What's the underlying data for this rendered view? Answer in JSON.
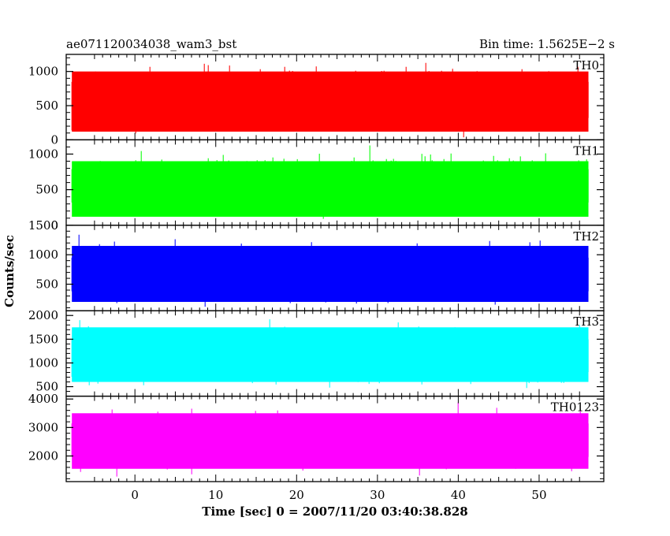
{
  "header": {
    "left": "ae071120034038_wam3_bst",
    "right": "Bin time: 1.5625E−2 s"
  },
  "chart_data": {
    "type": "line",
    "xlabel": "Time [sec] 0 = 2007/11/20 03:40:38.828",
    "ylabel": "Counts/sec",
    "xlim": [
      -8.5,
      58.0
    ],
    "data_x_range": [
      -7.8,
      56.1
    ],
    "x_ticks": [
      0,
      10,
      20,
      30,
      40,
      50
    ],
    "bin_time_s": 0.015625,
    "panels": [
      {
        "name": "TH0",
        "color": "#ff0000",
        "ylim": [
          0,
          1250
        ],
        "y_ticks": [
          0,
          500,
          1000
        ],
        "y_tick_labels": [
          "0",
          "500",
          "1000"
        ],
        "mean": 620,
        "low_typical": 120,
        "high_typical": 1000,
        "max": 1250
      },
      {
        "name": "TH1",
        "color": "#00ff00",
        "ylim": [
          0,
          1200
        ],
        "y_ticks": [
          0,
          500,
          1000
        ],
        "y_tick_labels": [
          "0",
          "500",
          "1000"
        ],
        "mean": 620,
        "low_typical": 120,
        "high_typical": 900,
        "max": 1150
      },
      {
        "name": "TH2",
        "color": "#0000ff",
        "ylim": [
          50,
          1500
        ],
        "y_ticks": [
          500,
          1000,
          1500
        ],
        "y_tick_labels": [
          "500",
          "1000",
          "1500"
        ],
        "mean": 650,
        "low_typical": 200,
        "high_typical": 1150,
        "max": 1450
      },
      {
        "name": "TH3",
        "color": "#00ffff",
        "ylim": [
          300,
          2100
        ],
        "y_ticks": [
          500,
          1000,
          1500,
          2000
        ],
        "y_tick_labels": [
          "500",
          "1000",
          "1500",
          "2000"
        ],
        "mean": 1120,
        "low_typical": 600,
        "high_typical": 1750,
        "max": 2100
      },
      {
        "name": "TH0123",
        "color": "#ff00ff",
        "ylim": [
          1100,
          4100
        ],
        "y_ticks": [
          2000,
          3000,
          4000
        ],
        "y_tick_labels": [
          "2000",
          "3000",
          "4000"
        ],
        "mean": 2600,
        "low_typical": 1550,
        "high_typical": 3500,
        "max": 4050
      }
    ]
  }
}
